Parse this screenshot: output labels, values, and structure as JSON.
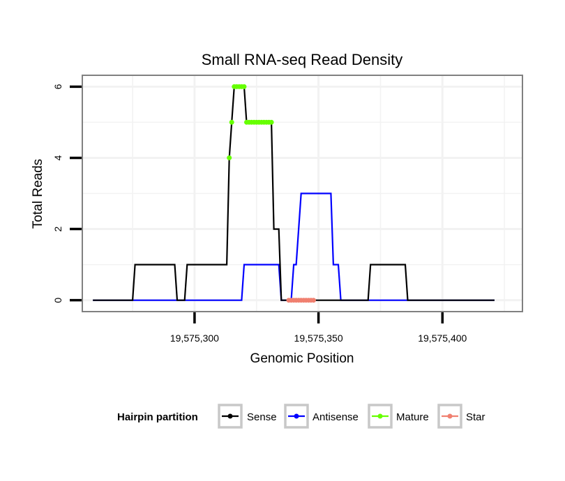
{
  "chart_data": {
    "type": "line",
    "title": "Small RNA-seq Read Density",
    "xlabel": "Genomic Position",
    "ylabel": "Total Reads",
    "xlim": [
      19575255,
      19575432
    ],
    "ylim": [
      -0.3,
      6.3
    ],
    "x_ticks": [
      19575300,
      19575350,
      19575400
    ],
    "x_tick_labels": [
      "19,575,300",
      "19,575,350",
      "19,575,400"
    ],
    "y_ticks": [
      0,
      2,
      4,
      6
    ],
    "y_tick_labels": [
      "0",
      "2",
      "4",
      "6"
    ],
    "grid": true,
    "legend_position": "bottom",
    "legend_title": "Hairpin partition",
    "series": [
      {
        "name": "Sense",
        "color": "#000000",
        "style": "line",
        "points": [
          [
            19575259,
            0
          ],
          [
            19575275,
            0
          ],
          [
            19575276,
            1
          ],
          [
            19575292,
            1
          ],
          [
            19575293,
            0
          ],
          [
            19575296,
            0
          ],
          [
            19575297,
            1
          ],
          [
            19575313,
            1
          ],
          [
            19575314,
            4
          ],
          [
            19575315,
            5
          ],
          [
            19575316,
            6
          ],
          [
            19575320,
            6
          ],
          [
            19575321,
            5
          ],
          [
            19575331,
            5
          ],
          [
            19575332,
            2
          ],
          [
            19575334,
            2
          ],
          [
            19575335,
            0
          ],
          [
            19575370,
            0
          ],
          [
            19575371,
            1
          ],
          [
            19575385,
            1
          ],
          [
            19575386,
            0
          ],
          [
            19575421,
            0
          ]
        ]
      },
      {
        "name": "Antisense",
        "color": "#0000ff",
        "style": "line",
        "points": [
          [
            19575259,
            0
          ],
          [
            19575319,
            0
          ],
          [
            19575320,
            1
          ],
          [
            19575334,
            1
          ],
          [
            19575335,
            0
          ],
          [
            19575339,
            0
          ],
          [
            19575340,
            1
          ],
          [
            19575341,
            1
          ],
          [
            19575343,
            3
          ],
          [
            19575355,
            3
          ],
          [
            19575356,
            1
          ],
          [
            19575358,
            1
          ],
          [
            19575359,
            0
          ],
          [
            19575421,
            0
          ]
        ]
      },
      {
        "name": "Mature",
        "color": "#66ff00",
        "style": "points",
        "points": [
          [
            19575314,
            4
          ],
          [
            19575315,
            5
          ],
          [
            19575316,
            6
          ],
          [
            19575317,
            6
          ],
          [
            19575318,
            6
          ],
          [
            19575319,
            6
          ],
          [
            19575320,
            6
          ],
          [
            19575321,
            5
          ],
          [
            19575322,
            5
          ],
          [
            19575323,
            5
          ],
          [
            19575324,
            5
          ],
          [
            19575325,
            5
          ],
          [
            19575326,
            5
          ],
          [
            19575327,
            5
          ],
          [
            19575328,
            5
          ],
          [
            19575329,
            5
          ],
          [
            19575330,
            5
          ],
          [
            19575331,
            5
          ]
        ]
      },
      {
        "name": "Star",
        "color": "#f08070",
        "style": "points",
        "points": [
          [
            19575338,
            0
          ],
          [
            19575339,
            0
          ],
          [
            19575340,
            0
          ],
          [
            19575341,
            0
          ],
          [
            19575342,
            0
          ],
          [
            19575343,
            0
          ],
          [
            19575344,
            0
          ],
          [
            19575345,
            0
          ],
          [
            19575346,
            0
          ],
          [
            19575347,
            0
          ],
          [
            19575348,
            0
          ]
        ]
      }
    ]
  }
}
